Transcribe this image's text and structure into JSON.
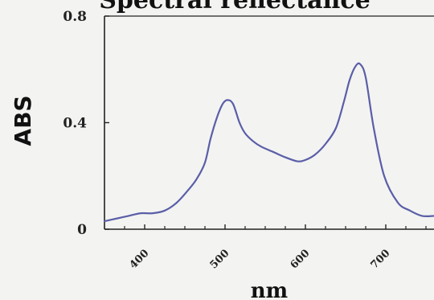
{
  "chart_data": {
    "type": "line",
    "title": "Spectral reflectance",
    "xlabel": "nm",
    "ylabel": "ABS",
    "xlim": [
      350,
      760
    ],
    "ylim": [
      0,
      0.8
    ],
    "xticks": [
      400,
      500,
      600,
      700
    ],
    "xtick_labels": [
      "400",
      "500",
      "600",
      "700"
    ],
    "yticks": [
      0,
      0.4,
      0.8
    ],
    "ytick_labels": [
      "0",
      "0.4",
      "0.8"
    ],
    "grid": false,
    "line_color": "#5a5ea8",
    "series": [
      {
        "x": [
          350,
          365,
          380,
          395,
          410,
          425,
          440,
          455,
          465,
          475,
          482,
          490,
          497,
          503,
          510,
          518,
          525,
          535,
          545,
          560,
          575,
          590,
          600,
          612,
          625,
          638,
          648,
          655,
          662,
          668,
          675,
          685,
          698,
          715,
          730,
          745,
          760
        ],
        "y": [
          0.03,
          0.04,
          0.05,
          0.06,
          0.06,
          0.07,
          0.1,
          0.15,
          0.19,
          0.25,
          0.34,
          0.42,
          0.47,
          0.485,
          0.47,
          0.4,
          0.36,
          0.33,
          0.31,
          0.29,
          0.27,
          0.255,
          0.26,
          0.28,
          0.32,
          0.38,
          0.48,
          0.56,
          0.61,
          0.62,
          0.57,
          0.38,
          0.2,
          0.1,
          0.07,
          0.05,
          0.05
        ]
      }
    ]
  }
}
